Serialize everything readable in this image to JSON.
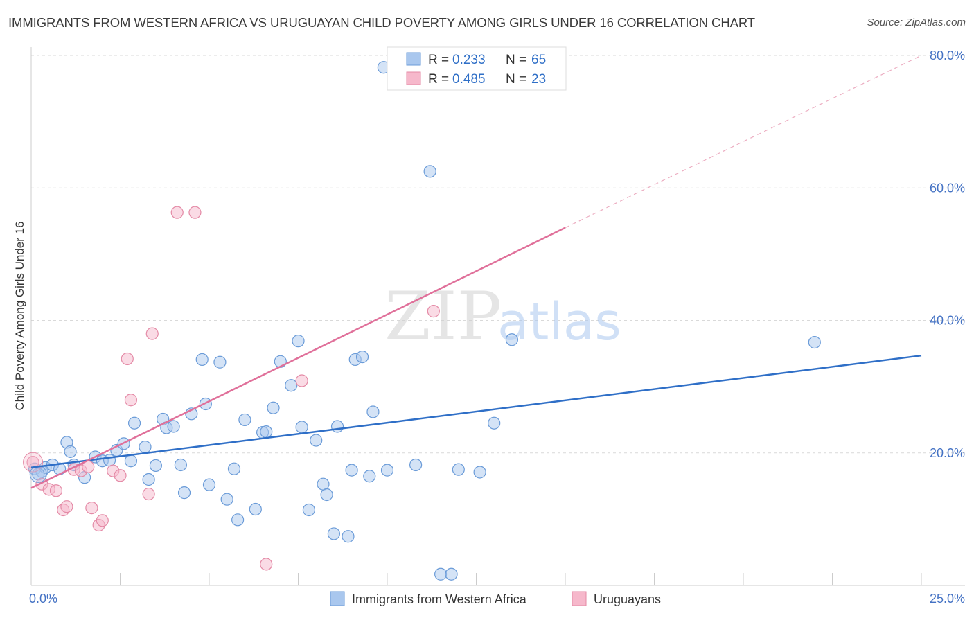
{
  "header": {
    "title": "IMMIGRANTS FROM WESTERN AFRICA VS URUGUAYAN CHILD POVERTY AMONG GIRLS UNDER 16 CORRELATION CHART",
    "source": "Source: ZipAtlas.com"
  },
  "watermark": {
    "zip": "ZIP",
    "atlas": "atlas"
  },
  "colors": {
    "blue_fill": "#a9c7ee",
    "blue_stroke": "#6a9bd8",
    "blue_line": "#2f6fc7",
    "pink_fill": "#f6b8cb",
    "pink_stroke": "#e48aa6",
    "pink_line": "#e0709a",
    "grid": "#d9d9d9",
    "axis_text": "#4472c4"
  },
  "legend": {
    "rows": [
      {
        "r_label": "R = ",
        "r_value": "0.233",
        "n_label": "N = ",
        "n_value": "65"
      },
      {
        "r_label": "R = ",
        "r_value": "0.485",
        "n_label": "N = ",
        "n_value": "23"
      }
    ]
  },
  "chart_data": {
    "type": "scatter",
    "title": "IMMIGRANTS FROM WESTERN AFRICA VS URUGUAYAN CHILD POVERTY AMONG GIRLS UNDER 16 CORRELATION CHART",
    "xlabel": "",
    "ylabel": "Child Poverty Among Girls Under 16",
    "xlim": [
      0,
      25
    ],
    "ylim": [
      0,
      80
    ],
    "x_tick_labels": [
      "0.0%",
      "25.0%"
    ],
    "y_ticks": [
      20,
      40,
      60,
      80
    ],
    "y_tick_labels": [
      "20.0%",
      "40.0%",
      "60.0%",
      "80.0%"
    ],
    "grid": true,
    "legend_position": "top-center",
    "series": [
      {
        "name": "Immigrants from Western Africa",
        "color": "#a9c7ee",
        "points": [
          [
            0.1,
            17.6
          ],
          [
            0.3,
            17.2
          ],
          [
            0.4,
            17.8
          ],
          [
            0.6,
            18.2
          ],
          [
            0.8,
            17.6
          ],
          [
            1.0,
            21.6
          ],
          [
            1.1,
            20.2
          ],
          [
            1.2,
            18.2
          ],
          [
            1.5,
            16.3
          ],
          [
            1.8,
            19.4
          ],
          [
            2.0,
            18.8
          ],
          [
            2.2,
            18.9
          ],
          [
            2.4,
            20.4
          ],
          [
            2.6,
            21.4
          ],
          [
            2.8,
            18.8
          ],
          [
            2.9,
            24.5
          ],
          [
            3.2,
            20.9
          ],
          [
            3.3,
            16.0
          ],
          [
            3.5,
            18.1
          ],
          [
            3.7,
            25.1
          ],
          [
            3.8,
            23.8
          ],
          [
            4.0,
            24.0
          ],
          [
            4.2,
            18.2
          ],
          [
            4.3,
            14.0
          ],
          [
            4.5,
            25.9
          ],
          [
            4.8,
            34.1
          ],
          [
            4.9,
            27.4
          ],
          [
            5.0,
            15.2
          ],
          [
            5.3,
            33.7
          ],
          [
            5.5,
            13.0
          ],
          [
            5.7,
            17.6
          ],
          [
            5.8,
            9.9
          ],
          [
            6.0,
            25.0
          ],
          [
            6.3,
            11.5
          ],
          [
            6.5,
            23.1
          ],
          [
            6.6,
            23.2
          ],
          [
            6.8,
            26.8
          ],
          [
            7.0,
            33.8
          ],
          [
            7.3,
            30.2
          ],
          [
            7.5,
            36.9
          ],
          [
            7.6,
            23.9
          ],
          [
            7.8,
            11.4
          ],
          [
            8.0,
            21.9
          ],
          [
            8.2,
            15.3
          ],
          [
            8.3,
            13.7
          ],
          [
            8.5,
            7.8
          ],
          [
            8.6,
            24.0
          ],
          [
            8.9,
            7.4
          ],
          [
            9.0,
            17.4
          ],
          [
            9.1,
            34.1
          ],
          [
            9.3,
            34.5
          ],
          [
            9.5,
            16.5
          ],
          [
            9.6,
            26.2
          ],
          [
            9.9,
            78.2
          ],
          [
            10.0,
            17.4
          ],
          [
            10.8,
            18.2
          ],
          [
            11.2,
            62.5
          ],
          [
            11.5,
            1.7
          ],
          [
            11.8,
            1.7
          ],
          [
            12.0,
            17.5
          ],
          [
            12.6,
            17.1
          ],
          [
            13.0,
            24.5
          ],
          [
            13.5,
            37.1
          ],
          [
            22.0,
            36.7
          ],
          [
            0.2,
            16.8
          ]
        ]
      },
      {
        "name": "Uruguayans",
        "color": "#f6b8cb",
        "points": [
          [
            0.05,
            18.6
          ],
          [
            0.3,
            15.3
          ],
          [
            0.5,
            14.5
          ],
          [
            0.7,
            14.3
          ],
          [
            0.9,
            11.4
          ],
          [
            1.0,
            11.9
          ],
          [
            1.2,
            17.5
          ],
          [
            1.4,
            17.3
          ],
          [
            1.6,
            17.9
          ],
          [
            1.7,
            11.7
          ],
          [
            1.9,
            9.1
          ],
          [
            2.0,
            9.8
          ],
          [
            2.3,
            17.3
          ],
          [
            2.5,
            16.6
          ],
          [
            2.7,
            34.2
          ],
          [
            2.8,
            28.0
          ],
          [
            3.3,
            13.8
          ],
          [
            3.4,
            38.0
          ],
          [
            4.1,
            56.3
          ],
          [
            4.6,
            56.3
          ],
          [
            6.6,
            3.2
          ],
          [
            7.6,
            30.9
          ],
          [
            11.3,
            41.4
          ]
        ]
      }
    ],
    "trend_lines": [
      {
        "series": "Immigrants from Western Africa",
        "x": [
          0,
          25
        ],
        "y": [
          17.8,
          34.7
        ]
      },
      {
        "series": "Uruguayans",
        "x": [
          0,
          15
        ],
        "y": [
          14.7,
          54.0
        ],
        "dashed_extension_to": [
          25,
          80.0
        ]
      }
    ]
  }
}
